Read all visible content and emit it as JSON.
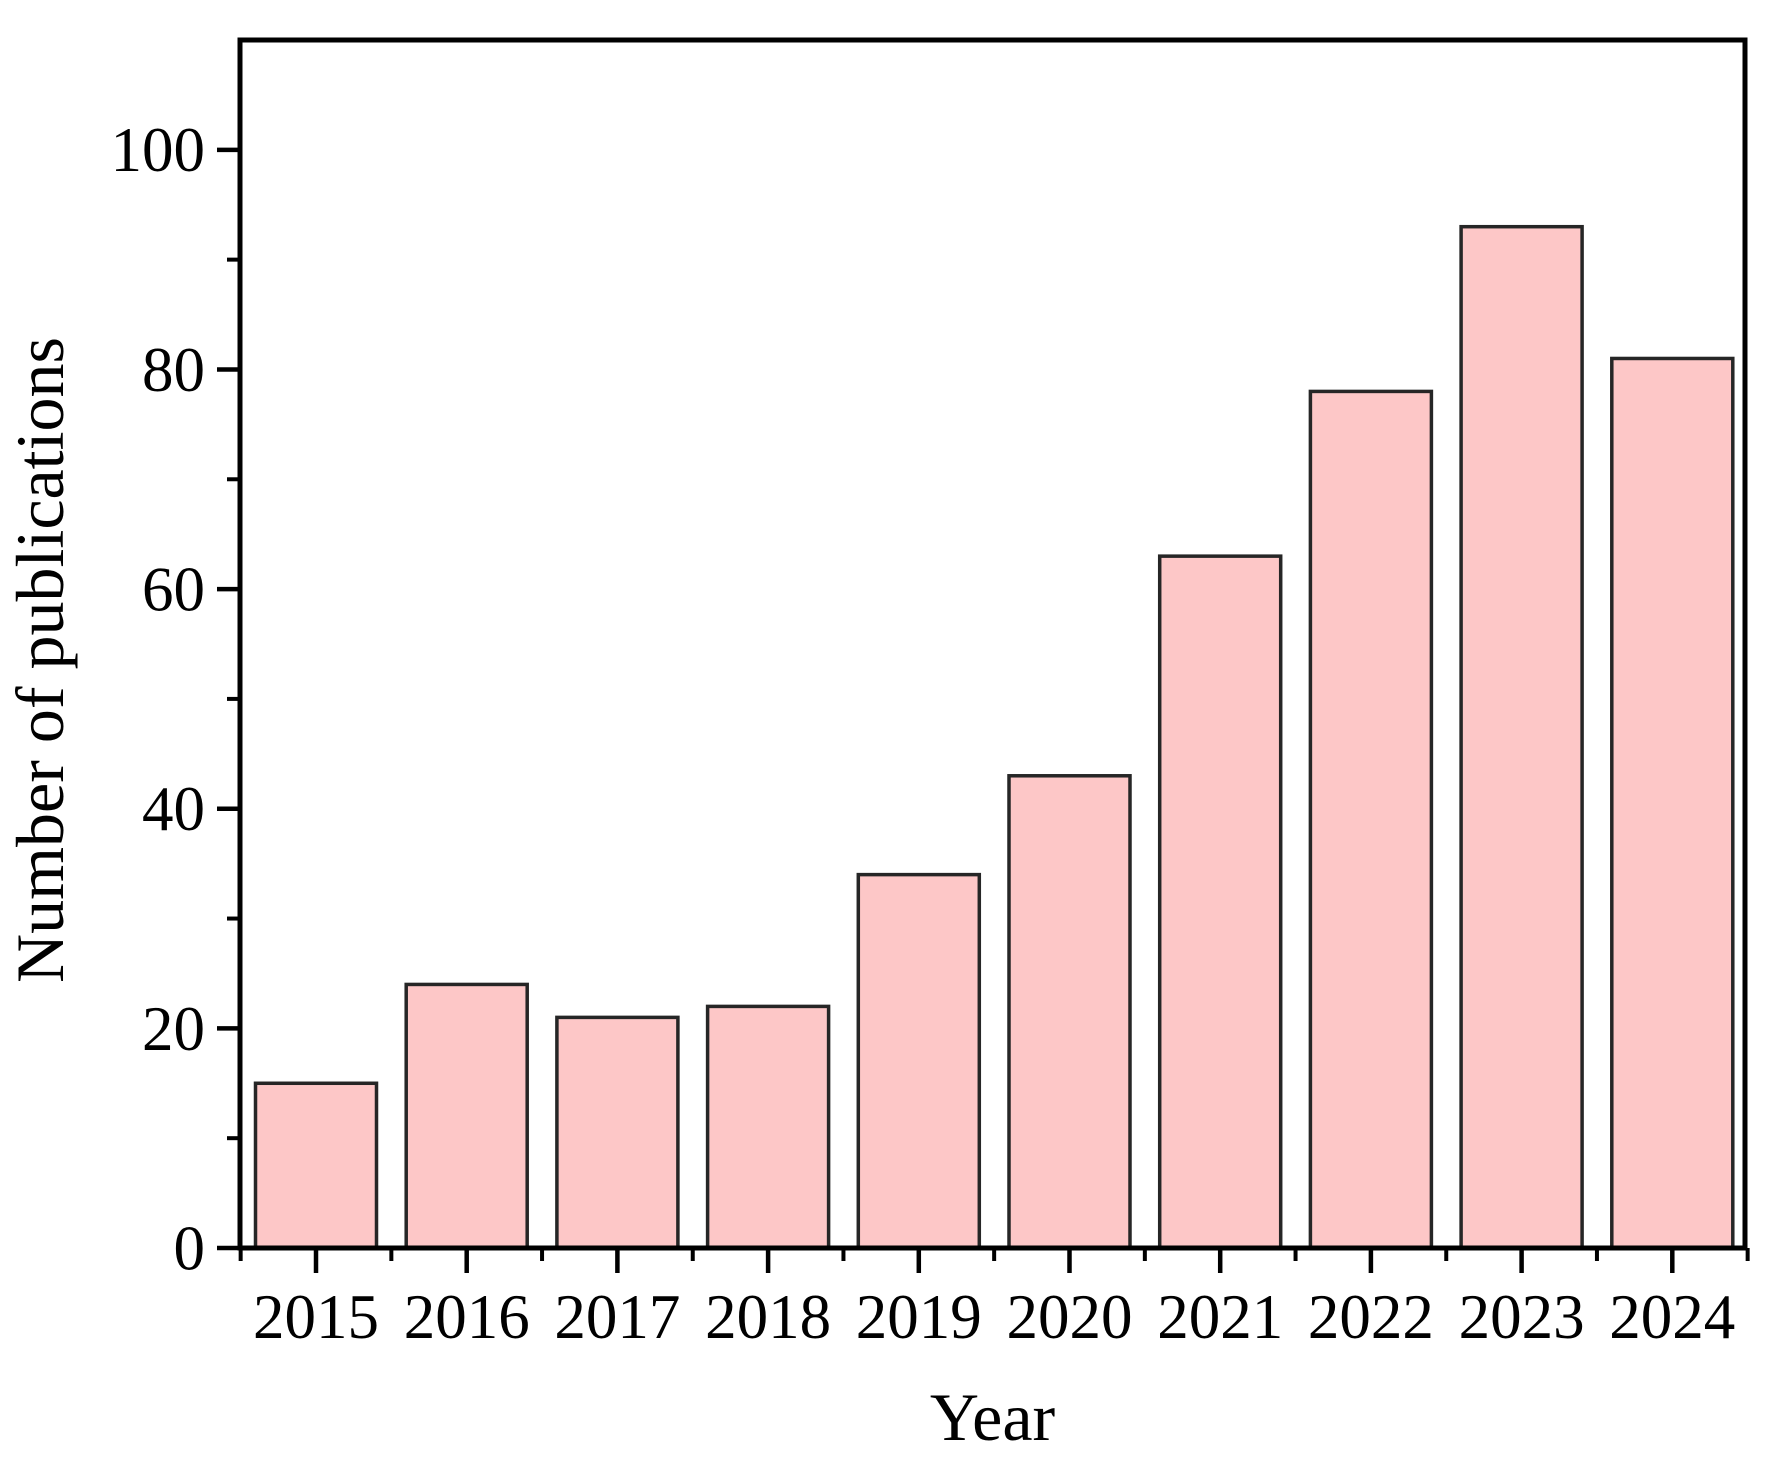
{
  "figure": {
    "background": "#ffffff"
  },
  "chart_data": {
    "type": "bar",
    "title": "",
    "xlabel": "Year",
    "ylabel": "Number of publications",
    "categories": [
      "2015",
      "2016",
      "2017",
      "2018",
      "2019",
      "2020",
      "2021",
      "2022",
      "2023",
      "2024"
    ],
    "values": [
      15,
      24,
      21,
      22,
      34,
      43,
      63,
      78,
      93,
      81
    ],
    "y_ticks": [
      0,
      20,
      40,
      60,
      80,
      100
    ],
    "y_minor_ticks": [
      10,
      30,
      50,
      70,
      90
    ],
    "ylim": [
      0,
      110
    ],
    "grid": false,
    "legend": "none",
    "bar_fill": "#fdc7c7",
    "bar_edge": "#262626",
    "axis_color": "#000000"
  }
}
